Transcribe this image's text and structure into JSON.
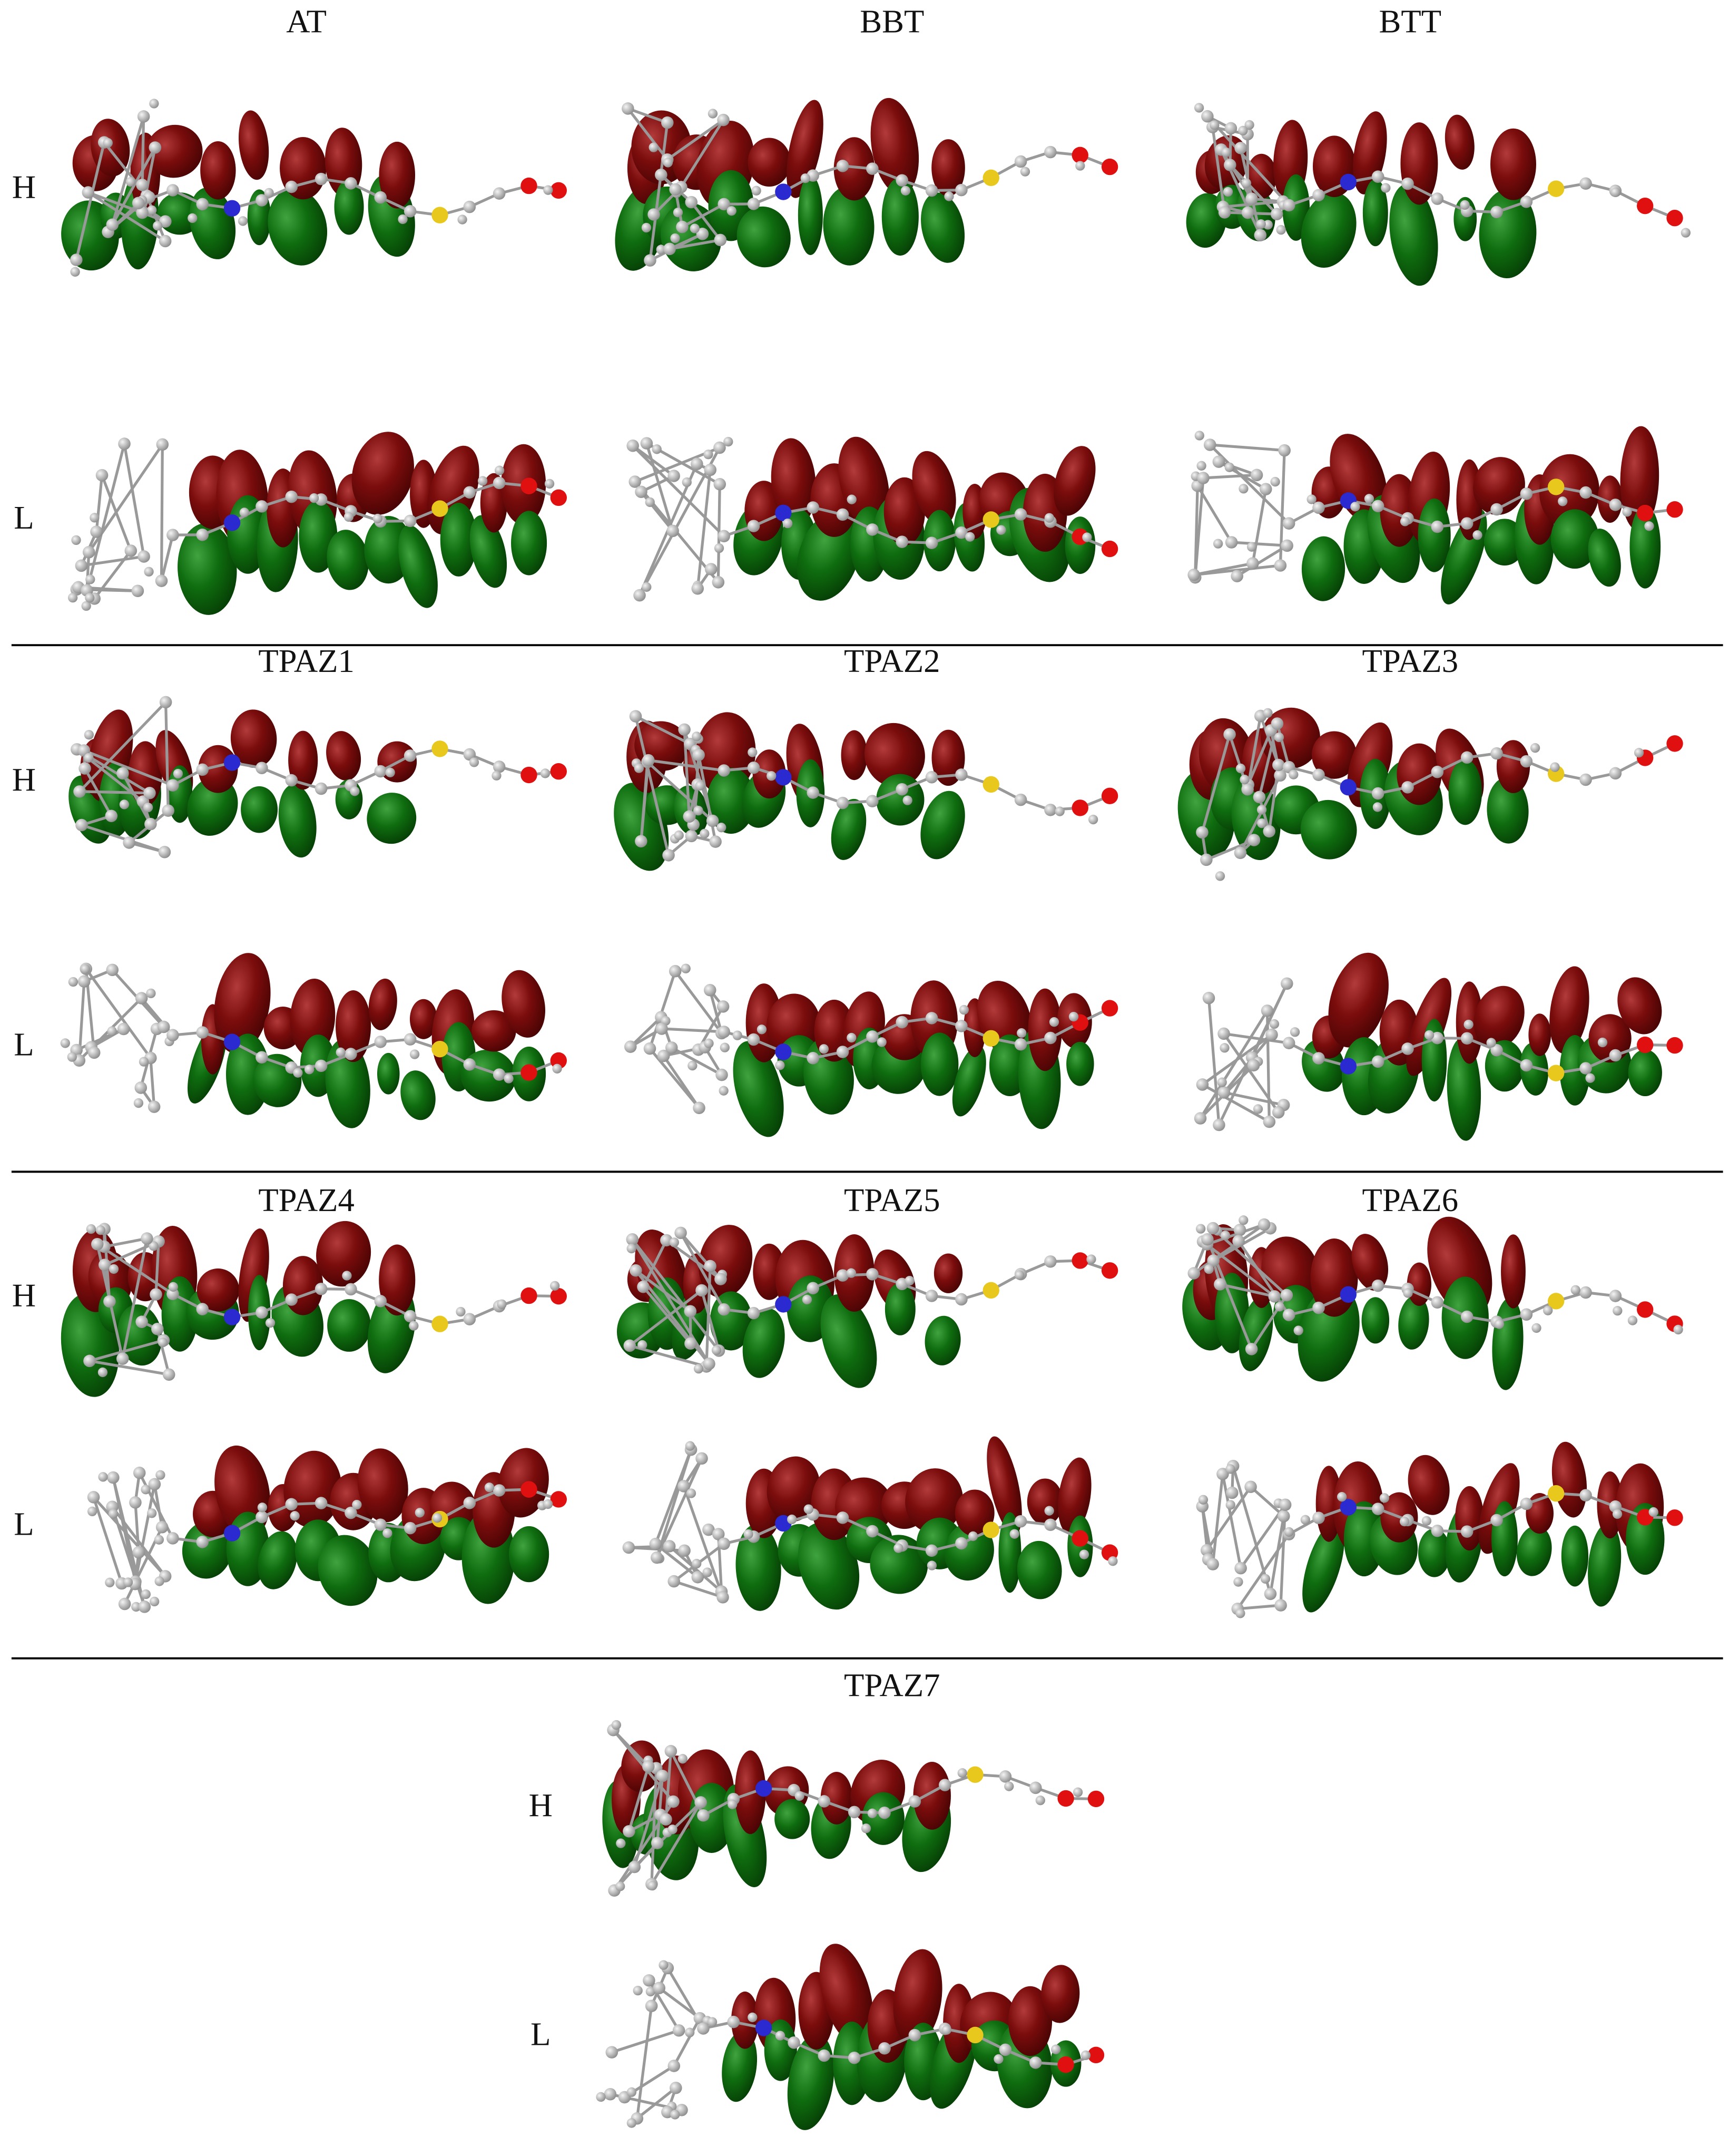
{
  "rows": [
    {
      "panels": [
        "AT",
        "BBT",
        "BTT"
      ],
      "labels": [
        "H",
        "L"
      ]
    },
    {
      "panels": [
        "TPAZ1",
        "TPAZ2",
        "TPAZ3"
      ],
      "labels": [
        "H",
        "L"
      ]
    },
    {
      "panels": [
        "TPAZ4",
        "TPAZ5",
        "TPAZ6"
      ],
      "labels": [
        "H",
        "L"
      ]
    },
    {
      "panels": [
        "TPAZ7"
      ],
      "labels": [
        "H",
        "L"
      ]
    }
  ]
}
